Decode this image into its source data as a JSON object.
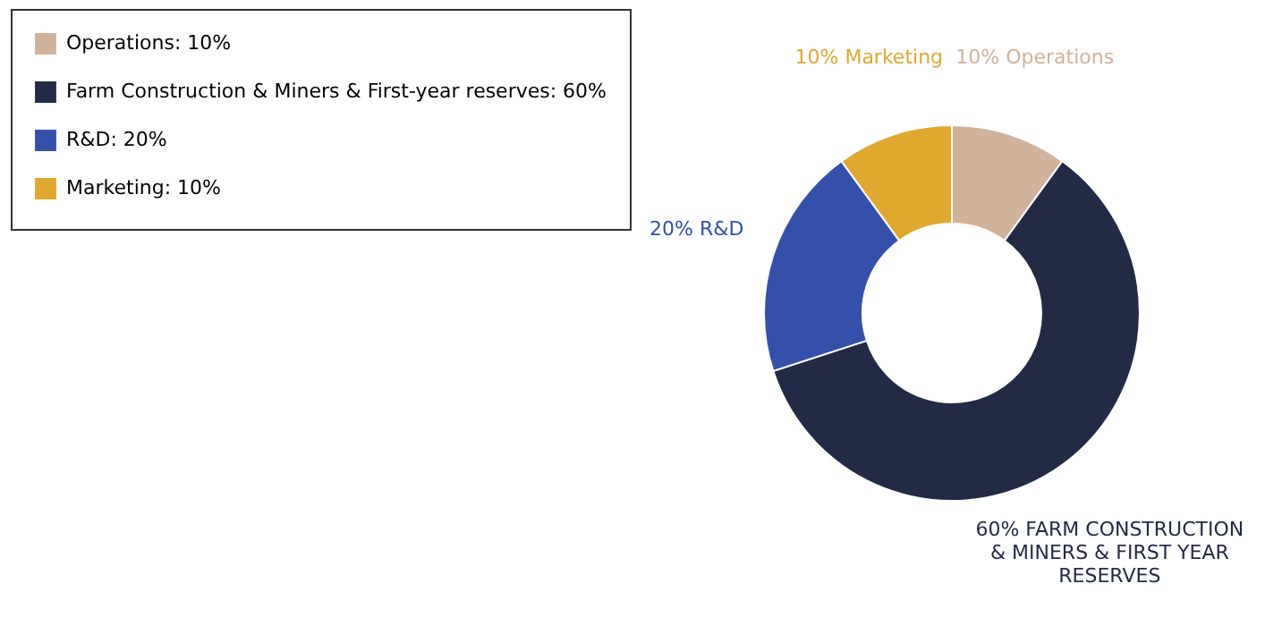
{
  "chart_data": {
    "type": "donut",
    "categories": [
      "Operations: 10%",
      "Farm Construction & Miners & First-year reserves: 60%",
      "R&D: 20%",
      "Marketing: 10%"
    ],
    "values": [
      10,
      60,
      20,
      10
    ],
    "colors": [
      "#d1b29a",
      "#232a45",
      "#3350ab",
      "#e0a82e"
    ],
    "value_labels": [
      "10% Operations",
      "60% FARM CONSTRUCTION & MINERS & FIRST YEAR RESERVES",
      "20% R&D",
      "10% Marketing"
    ],
    "legend": "left"
  }
}
